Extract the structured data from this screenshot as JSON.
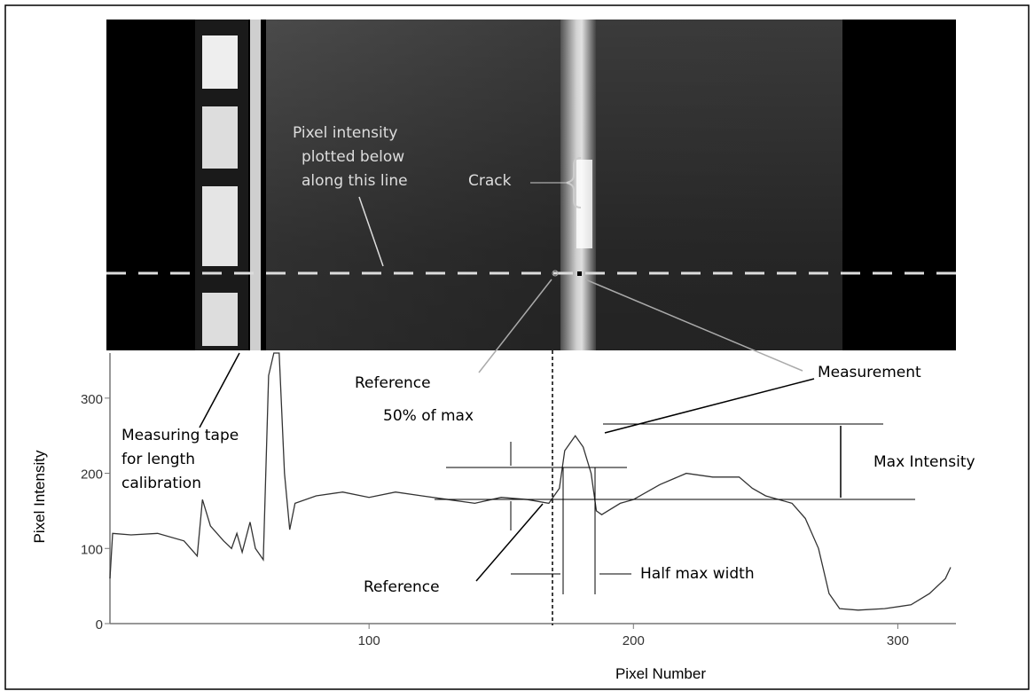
{
  "chart_data": {
    "type": "line",
    "x_label": "Pixel Number",
    "y_label": "Pixel Intensity",
    "x": [
      2,
      3,
      10,
      20,
      30,
      35,
      37,
      40,
      45,
      48,
      50,
      52,
      55,
      57,
      60,
      62,
      64,
      66,
      68,
      70,
      72,
      80,
      90,
      100,
      110,
      120,
      130,
      140,
      150,
      160,
      168,
      172,
      174,
      178,
      181,
      184,
      186,
      188,
      195,
      200,
      210,
      220,
      230,
      240,
      245,
      250,
      260,
      265,
      270,
      274,
      278,
      285,
      295,
      305,
      312,
      318,
      320
    ],
    "series": [
      {
        "name": "Pixel Intensity",
        "color": "#333333",
        "values": [
          60,
          120,
          118,
          120,
          110,
          90,
          165,
          130,
          110,
          100,
          120,
          95,
          135,
          100,
          85,
          330,
          360,
          360,
          200,
          125,
          160,
          170,
          175,
          168,
          175,
          170,
          165,
          160,
          168,
          165,
          160,
          180,
          230,
          250,
          235,
          200,
          150,
          145,
          160,
          165,
          185,
          200,
          195,
          195,
          180,
          170,
          160,
          140,
          100,
          40,
          20,
          18,
          20,
          25,
          40,
          60,
          75
        ]
      }
    ],
    "xlim": [
      2,
      322
    ],
    "ylim": [
      0,
      360
    ],
    "xticks": [
      100,
      200,
      300
    ],
    "yticks": [
      0,
      100,
      200,
      300
    ],
    "annotations": {
      "line_note": [
        "Pixel intensity",
        "plotted below",
        "along this line"
      ],
      "crack": "Crack",
      "reference_top": "Reference",
      "half_max": "50% of max",
      "measurement": "Measurement",
      "tape": [
        "Measuring tape",
        "for length",
        "calibration"
      ],
      "max_intensity": "Max Intensity",
      "reference_bottom": "Reference",
      "half_max_width": "Half max width"
    }
  }
}
